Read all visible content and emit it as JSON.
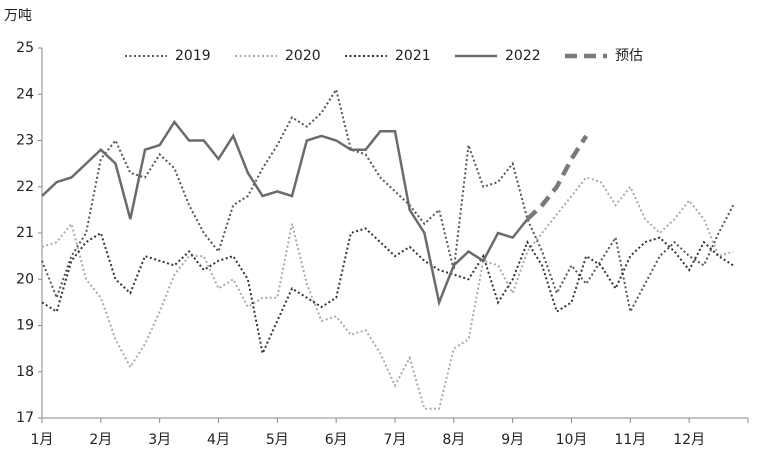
{
  "chart_data": {
    "type": "line",
    "y_label": "万吨",
    "categories": [
      "1月",
      null,
      null,
      null,
      "2月",
      null,
      null,
      null,
      "3月",
      null,
      null,
      null,
      "4月",
      null,
      null,
      null,
      "5月",
      null,
      null,
      null,
      "6月",
      null,
      null,
      null,
      "7月",
      null,
      null,
      null,
      "8月",
      null,
      null,
      null,
      "9月",
      null,
      null,
      null,
      "10月",
      null,
      null,
      null,
      "11月",
      null,
      null,
      null,
      "12月",
      null,
      null,
      null
    ],
    "ylim": [
      17,
      25
    ],
    "yticks": [
      17,
      18,
      19,
      20,
      21,
      22,
      23,
      24,
      25
    ],
    "grid": false,
    "series": [
      {
        "name": "2019",
        "color": "#555555",
        "dash": "dotted",
        "values": [
          20.4,
          19.6,
          20.5,
          21.0,
          22.6,
          23.0,
          22.3,
          22.2,
          22.7,
          22.4,
          21.6,
          21.0,
          20.6,
          21.6,
          21.8,
          22.4,
          22.9,
          23.5,
          23.3,
          23.6,
          24.1,
          22.8,
          22.7,
          22.2,
          21.9,
          21.6,
          21.2,
          21.5,
          20.2,
          22.9,
          22.0,
          22.1,
          22.5,
          21.3,
          20.6,
          19.7,
          20.3,
          19.9,
          20.4,
          20.9,
          19.3,
          19.9,
          20.5,
          20.8,
          20.5,
          20.3,
          21.0,
          21.6
        ]
      },
      {
        "name": "2020",
        "color": "#aaaaaa",
        "dash": "dotted",
        "values": [
          20.7,
          20.8,
          21.2,
          20.0,
          19.6,
          18.7,
          18.1,
          18.6,
          19.3,
          20.1,
          20.5,
          20.5,
          19.8,
          20.0,
          19.4,
          19.6,
          19.6,
          21.2,
          19.9,
          19.1,
          19.2,
          18.8,
          18.9,
          18.4,
          17.7,
          18.3,
          17.2,
          17.2,
          18.5,
          18.7,
          20.4,
          20.3,
          19.7,
          20.6,
          21.0,
          21.4,
          21.8,
          22.2,
          22.1,
          21.6,
          22.0,
          21.3,
          21.0,
          21.3,
          21.7,
          21.3,
          20.5,
          20.6
        ]
      },
      {
        "name": "2021",
        "color": "#333333",
        "dash": "dotted",
        "values": [
          19.5,
          19.3,
          20.4,
          20.8,
          21.0,
          20.0,
          19.7,
          20.5,
          20.4,
          20.3,
          20.6,
          20.2,
          20.4,
          20.5,
          20.0,
          18.4,
          19.1,
          19.8,
          19.6,
          19.4,
          19.6,
          21.0,
          21.1,
          20.8,
          20.5,
          20.7,
          20.4,
          20.2,
          20.1,
          20.0,
          20.5,
          19.5,
          20.0,
          20.8,
          20.3,
          19.3,
          19.5,
          20.5,
          20.3,
          19.8,
          20.5,
          20.8,
          20.9,
          20.6,
          20.2,
          20.8,
          20.5,
          20.3
        ]
      },
      {
        "name": "2022",
        "color": "#6b6b6b",
        "dash": "solid",
        "values": [
          21.8,
          22.1,
          22.2,
          22.5,
          22.8,
          22.5,
          21.3,
          22.8,
          22.9,
          23.4,
          23.0,
          23.0,
          22.6,
          23.1,
          22.3,
          21.8,
          21.9,
          21.8,
          23.0,
          23.1,
          23.0,
          22.8,
          22.8,
          23.2,
          23.2,
          21.5,
          21.0,
          19.5,
          20.3,
          20.6,
          20.4,
          21.0,
          20.9,
          21.3,
          null,
          null,
          null,
          null,
          null,
          null,
          null,
          null,
          null,
          null,
          null,
          null,
          null,
          null
        ]
      },
      {
        "name": "预估",
        "color": "#7a7a7a",
        "dash": "dashed",
        "values": [
          null,
          null,
          null,
          null,
          null,
          null,
          null,
          null,
          null,
          null,
          null,
          null,
          null,
          null,
          null,
          null,
          null,
          null,
          null,
          null,
          null,
          null,
          null,
          null,
          null,
          null,
          null,
          null,
          null,
          null,
          null,
          null,
          null,
          21.3,
          21.6,
          22.0,
          22.6,
          23.1,
          null,
          null,
          null,
          null,
          null,
          null,
          null,
          null,
          null,
          null
        ]
      }
    ]
  }
}
